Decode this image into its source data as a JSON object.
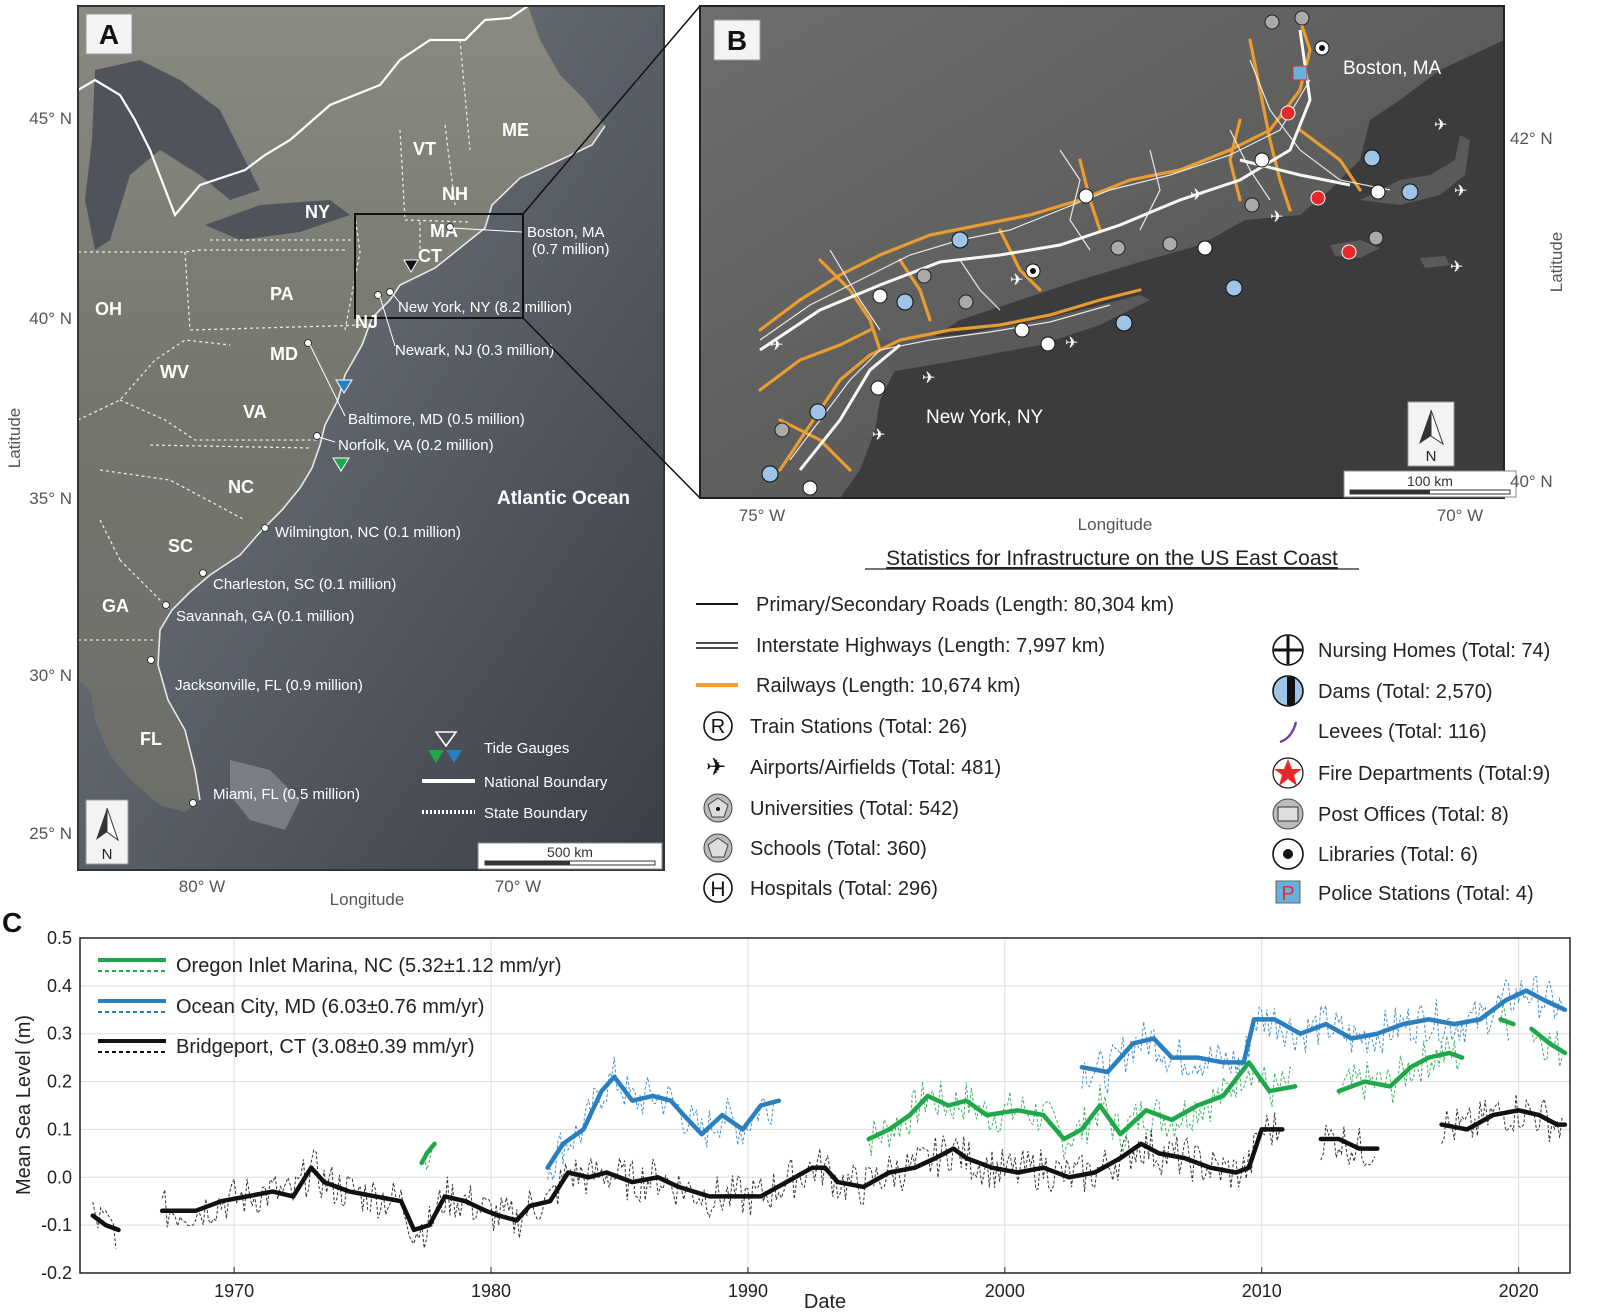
{
  "panelA": {
    "letter": "A",
    "states": [
      "ME",
      "VT",
      "NH",
      "NY",
      "MA",
      "CT",
      "PA",
      "NJ",
      "OH",
      "MD",
      "WV",
      "VA",
      "NC",
      "SC",
      "GA",
      "FL"
    ],
    "cities": [
      {
        "name": "Boston, MA",
        "pop": "(0.7 million)"
      },
      {
        "name": "New York, NY (8.2 million)"
      },
      {
        "name": "Newark, NJ (0.3 million)"
      },
      {
        "name": "Baltimore, MD (0.5 million)"
      },
      {
        "name": "Norfolk, VA (0.2 million)"
      },
      {
        "name": "Wilmington, NC (0.1 million)"
      },
      {
        "name": "Charleston, SC (0.1 million)"
      },
      {
        "name": "Savannah, GA (0.1 million)"
      },
      {
        "name": "Jacksonville, FL (0.9 million)"
      },
      {
        "name": "Miami, FL (0.5 million)"
      }
    ],
    "ocean": "Atlantic Ocean",
    "lat_ticks": [
      "45° N",
      "40° N",
      "35° N",
      "30° N",
      "25° N"
    ],
    "lon_ticks": [
      "80° W",
      "70° W"
    ],
    "xlabel": "Longitude",
    "ylabel": "Latitude",
    "legend": {
      "tide": "Tide Gauges",
      "national": "National Boundary",
      "state": "State Boundary"
    },
    "scalebar": "500 km",
    "north": "N"
  },
  "panelB": {
    "letter": "B",
    "city_boston": "Boston, MA",
    "city_ny": "New York, NY",
    "lat_ticks": [
      "42° N",
      "40° N"
    ],
    "lon_ticks": [
      "75° W",
      "70° W"
    ],
    "xlabel": "Longitude",
    "ylabel": "Latitude",
    "scalebar": "100 km",
    "north": "N"
  },
  "stats": {
    "title": "Statistics for Infrastructure on the US East Coast",
    "left": [
      {
        "icon": "road-line-icon",
        "label": "Primary/Secondary Roads (Length: 80,304 km)"
      },
      {
        "icon": "interstate-line-icon",
        "label": "Interstate Highways (Length: 7,997 km)"
      },
      {
        "icon": "railway-line-icon",
        "label": "Railways (Length: 10,674 km)"
      },
      {
        "icon": "train-station-icon",
        "label": "Train Stations (Total: 26)"
      },
      {
        "icon": "airport-icon",
        "label": "Airports/Airfields (Total: 481)"
      },
      {
        "icon": "university-icon",
        "label": "Universities (Total: 542)"
      },
      {
        "icon": "school-icon",
        "label": "Schools (Total: 360)"
      },
      {
        "icon": "hospital-icon",
        "label": "Hospitals (Total: 296)"
      }
    ],
    "right": [
      {
        "icon": "nursing-home-icon",
        "label": "Nursing Homes (Total: 74)"
      },
      {
        "icon": "dam-icon",
        "label": "Dams (Total: 2,570)"
      },
      {
        "icon": "levee-icon",
        "label": "Levees (Total: 116)"
      },
      {
        "icon": "fire-department-icon",
        "label": "Fire Departments (Total:9)"
      },
      {
        "icon": "post-office-icon",
        "label": "Post Offices (Total: 8)"
      },
      {
        "icon": "library-icon",
        "label": "Libraries (Total: 6)"
      },
      {
        "icon": "police-station-icon",
        "label": "Police Stations (Total: 4)"
      }
    ]
  },
  "panelC": {
    "letter": "C",
    "legend": [
      "Oregon Inlet Marina, NC (5.32±1.12 mm/yr)",
      "Ocean City, MD (6.03±0.76 mm/yr)",
      "Bridgeport, CT (3.08±0.39 mm/yr)"
    ]
  },
  "chart_data": {
    "type": "line",
    "xlabel": "Date",
    "ylabel": "Mean Sea Level (m)",
    "xlim": [
      1964,
      2022
    ],
    "ylim": [
      -0.2,
      0.5
    ],
    "xticks": [
      "1970",
      "1980",
      "1990",
      "2000",
      "2010",
      "2020"
    ],
    "yticks": [
      "0.5",
      "0.4",
      "0.3",
      "0.2",
      "0.1",
      "0.0",
      "-0.1",
      "-0.2"
    ],
    "grid": true,
    "colors": {
      "oregon": "#1fa84a",
      "ocean": "#2a7fc1",
      "bridgeport": "#111111"
    },
    "series": [
      {
        "name": "Oregon Inlet Marina, NC",
        "segments": [
          [
            [
              1977.3,
              0.03
            ],
            [
              1977.5,
              0.05
            ],
            [
              1977.8,
              0.07
            ]
          ],
          [
            [
              1994.7,
              0.08
            ],
            [
              1995.5,
              0.1
            ],
            [
              1996.3,
              0.13
            ],
            [
              1997.0,
              0.17
            ],
            [
              1997.8,
              0.15
            ],
            [
              1998.5,
              0.16
            ],
            [
              1999.3,
              0.13
            ],
            [
              2000.5,
              0.14
            ],
            [
              2001.5,
              0.13
            ],
            [
              2002.3,
              0.08
            ],
            [
              2003.0,
              0.1
            ],
            [
              2003.7,
              0.15
            ],
            [
              2004.5,
              0.09
            ],
            [
              2005.5,
              0.14
            ],
            [
              2006.5,
              0.12
            ],
            [
              2007.5,
              0.15
            ],
            [
              2008.5,
              0.17
            ],
            [
              2009.5,
              0.24
            ],
            [
              2010.3,
              0.18
            ],
            [
              2011.3,
              0.19
            ]
          ],
          [
            [
              2013.0,
              0.18
            ],
            [
              2014.0,
              0.2
            ],
            [
              2015.0,
              0.19
            ],
            [
              2015.8,
              0.23
            ],
            [
              2016.5,
              0.25
            ],
            [
              2017.3,
              0.26
            ],
            [
              2017.8,
              0.25
            ]
          ],
          [
            [
              2019.3,
              0.33
            ],
            [
              2019.8,
              0.32
            ]
          ],
          [
            [
              2020.5,
              0.31
            ],
            [
              2021.2,
              0.28
            ],
            [
              2021.8,
              0.26
            ]
          ]
        ]
      },
      {
        "name": "Ocean City, MD",
        "segments": [
          [
            [
              1982.2,
              0.02
            ],
            [
              1982.8,
              0.07
            ],
            [
              1983.6,
              0.1
            ],
            [
              1984.3,
              0.18
            ],
            [
              1984.8,
              0.21
            ],
            [
              1985.5,
              0.16
            ],
            [
              1986.3,
              0.17
            ],
            [
              1987.0,
              0.16
            ],
            [
              1987.5,
              0.13
            ],
            [
              1988.2,
              0.09
            ],
            [
              1989.0,
              0.13
            ],
            [
              1989.8,
              0.1
            ],
            [
              1990.5,
              0.15
            ],
            [
              1991.2,
              0.16
            ]
          ],
          [
            [
              2003.0,
              0.23
            ],
            [
              2004.0,
              0.22
            ],
            [
              2005.0,
              0.28
            ],
            [
              2005.8,
              0.29
            ],
            [
              2006.5,
              0.25
            ],
            [
              2007.5,
              0.25
            ],
            [
              2008.5,
              0.24
            ],
            [
              2009.3,
              0.24
            ],
            [
              2009.7,
              0.33
            ],
            [
              2010.5,
              0.33
            ],
            [
              2011.5,
              0.3
            ],
            [
              2012.5,
              0.32
            ],
            [
              2013.5,
              0.29
            ],
            [
              2014.5,
              0.3
            ],
            [
              2015.5,
              0.32
            ],
            [
              2016.5,
              0.33
            ],
            [
              2017.5,
              0.32
            ],
            [
              2018.5,
              0.33
            ],
            [
              2019.5,
              0.37
            ],
            [
              2020.3,
              0.39
            ],
            [
              2021.0,
              0.37
            ],
            [
              2021.8,
              0.35
            ]
          ]
        ]
      },
      {
        "name": "Bridgeport, CT",
        "segments": [
          [
            [
              1964.5,
              -0.08
            ],
            [
              1965.0,
              -0.1
            ],
            [
              1965.5,
              -0.11
            ]
          ],
          [
            [
              1967.2,
              -0.07
            ],
            [
              1968.5,
              -0.07
            ],
            [
              1969.5,
              -0.05
            ],
            [
              1970.5,
              -0.04
            ],
            [
              1971.5,
              -0.03
            ],
            [
              1972.3,
              -0.04
            ],
            [
              1973.0,
              0.02
            ],
            [
              1973.5,
              -0.01
            ],
            [
              1974.5,
              -0.03
            ],
            [
              1975.5,
              -0.04
            ],
            [
              1976.5,
              -0.05
            ],
            [
              1977.0,
              -0.11
            ],
            [
              1977.6,
              -0.1
            ],
            [
              1978.2,
              -0.04
            ],
            [
              1979.0,
              -0.05
            ],
            [
              1979.8,
              -0.07
            ],
            [
              1980.3,
              -0.08
            ],
            [
              1981.0,
              -0.09
            ],
            [
              1981.5,
              -0.06
            ],
            [
              1982.3,
              -0.05
            ],
            [
              1983.0,
              0.01
            ],
            [
              1983.8,
              0.0
            ],
            [
              1984.5,
              0.01
            ],
            [
              1985.5,
              -0.01
            ],
            [
              1986.5,
              0.0
            ],
            [
              1987.3,
              -0.02
            ],
            [
              1988.5,
              -0.04
            ],
            [
              1989.5,
              -0.04
            ],
            [
              1990.5,
              -0.04
            ],
            [
              1991.5,
              -0.01
            ],
            [
              1992.5,
              0.02
            ],
            [
              1993.0,
              0.02
            ],
            [
              1993.5,
              -0.01
            ],
            [
              1994.5,
              -0.02
            ],
            [
              1995.5,
              0.01
            ],
            [
              1996.5,
              0.02
            ],
            [
              1997.3,
              0.04
            ],
            [
              1998.0,
              0.06
            ],
            [
              1998.5,
              0.04
            ],
            [
              1999.5,
              0.02
            ],
            [
              2000.5,
              0.01
            ],
            [
              2001.5,
              0.02
            ],
            [
              2002.5,
              0.0
            ],
            [
              2003.5,
              0.01
            ],
            [
              2004.5,
              0.04
            ],
            [
              2005.3,
              0.07
            ],
            [
              2006.0,
              0.05
            ],
            [
              2007.0,
              0.04
            ],
            [
              2008.0,
              0.02
            ],
            [
              2009.0,
              0.01
            ],
            [
              2009.5,
              0.02
            ],
            [
              2010.0,
              0.1
            ],
            [
              2010.8,
              0.1
            ]
          ],
          [
            [
              2012.3,
              0.08
            ],
            [
              2013.0,
              0.08
            ],
            [
              2013.8,
              0.06
            ],
            [
              2014.5,
              0.06
            ]
          ],
          [
            [
              2017.0,
              0.11
            ],
            [
              2018.0,
              0.1
            ],
            [
              2019.0,
              0.13
            ],
            [
              2020.0,
              0.14
            ],
            [
              2020.8,
              0.13
            ],
            [
              2021.5,
              0.11
            ],
            [
              2021.8,
              0.11
            ]
          ]
        ]
      }
    ]
  }
}
